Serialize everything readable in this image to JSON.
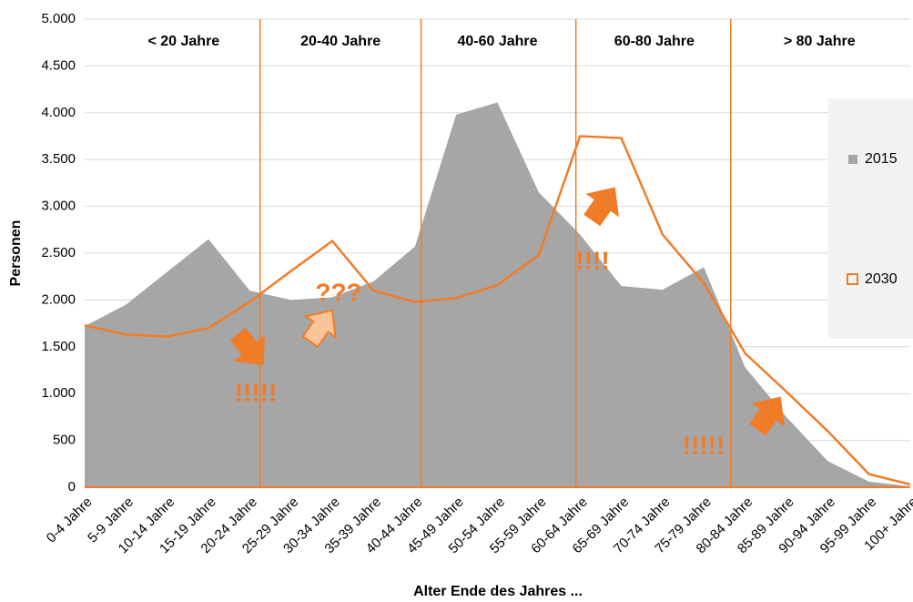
{
  "chart_data": {
    "type": "area-line",
    "x_label": "Alter Ende des Jahres ...",
    "y_label": "Personen",
    "categories": [
      "0-4 Jahre",
      "5-9 Jahre",
      "10-14 Jahre",
      "15-19 Jahre",
      "20-24 Jahre",
      "25-29 Jahre",
      "30-34 Jahre",
      "35-39 Jahre",
      "40-44 Jahre",
      "45-49 Jahre",
      "50-54 Jahre",
      "55-59 Jahre",
      "60-64 Jahre",
      "65-69 Jahre",
      "70-74 Jahre",
      "75-79 Jahre",
      "80-84 Jahre",
      "85-89 Jahre",
      "90-94 Jahre",
      "95-99 Jahre",
      "100+ Jahre"
    ],
    "series": [
      {
        "name": "2015",
        "color": "#a6a6a6",
        "style": "area",
        "values": [
          1720,
          1950,
          2300,
          2650,
          2100,
          2000,
          2030,
          2200,
          2570,
          3980,
          4110,
          3150,
          2700,
          2150,
          2110,
          2350,
          1280,
          750,
          280,
          60,
          10
        ]
      },
      {
        "name": "2030",
        "color": "#f07c28",
        "style": "line",
        "values": [
          1730,
          1630,
          1610,
          1700,
          1980,
          2310,
          2630,
          2100,
          1980,
          2020,
          2160,
          2480,
          3750,
          3730,
          2700,
          2180,
          1430,
          1020,
          600,
          140,
          30
        ]
      }
    ],
    "age_bands": [
      "< 20 Jahre",
      "20-40  Jahre",
      "40-60  Jahre",
      "60-80  Jahre",
      "> 80 Jahre"
    ],
    "annotations": [
      "!!!!!",
      "???",
      "!!!!",
      "!!!!!"
    ],
    "ylim": [
      0,
      5000
    ],
    "yticks": [
      0,
      500,
      {
        "value": 1000,
        "label": "1.000"
      },
      {
        "value": 1500,
        "label": "1.500"
      },
      {
        "value": 2000,
        "label": "2.000"
      },
      {
        "value": 2500,
        "label": "2.500"
      },
      {
        "value": 3000,
        "label": "3.000"
      },
      {
        "value": 3500,
        "label": "3.500"
      },
      {
        "value": 4000,
        "label": "4.000"
      },
      {
        "value": 4500,
        "label": "4.500"
      },
      {
        "value": 5000,
        "label": "5.000"
      }
    ],
    "grid": true,
    "legend": "right"
  }
}
